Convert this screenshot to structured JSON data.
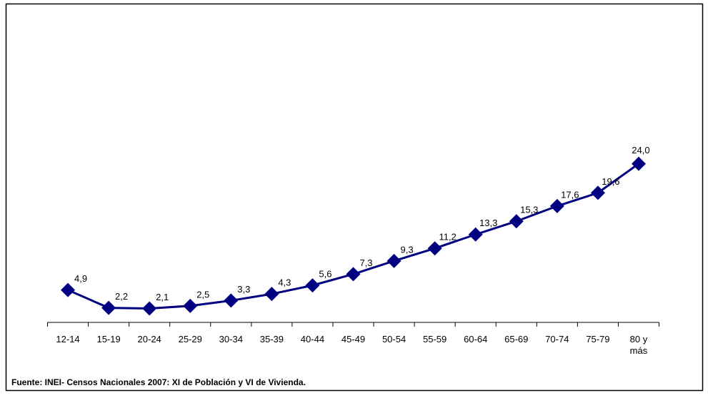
{
  "chart_data": {
    "type": "line",
    "categories": [
      "12-14",
      "15-19",
      "20-24",
      "25-29",
      "30-34",
      "35-39",
      "40-44",
      "45-49",
      "50-54",
      "55-59",
      "60-64",
      "65-69",
      "70-74",
      "75-79",
      "80 y más"
    ],
    "series": [
      {
        "color": "#000080",
        "values": [
          4.9,
          2.2,
          2.1,
          2.5,
          3.3,
          4.3,
          5.6,
          7.3,
          9.3,
          11.2,
          13.3,
          15.3,
          17.6,
          19.6,
          24.0
        ],
        "value_labels": [
          "4,9",
          "2,2",
          "2,1",
          "2,5",
          "3,3",
          "4,3",
          "5,6",
          "7,3",
          "9,3",
          "11,2",
          "13,3",
          "15,3",
          "17,6",
          "19,6",
          "24,0"
        ]
      }
    ],
    "ylim": [
      0,
      45
    ],
    "source": "Fuente: INEI- Censos Nacionales 2007: XI de Población y VI de Vivienda."
  }
}
